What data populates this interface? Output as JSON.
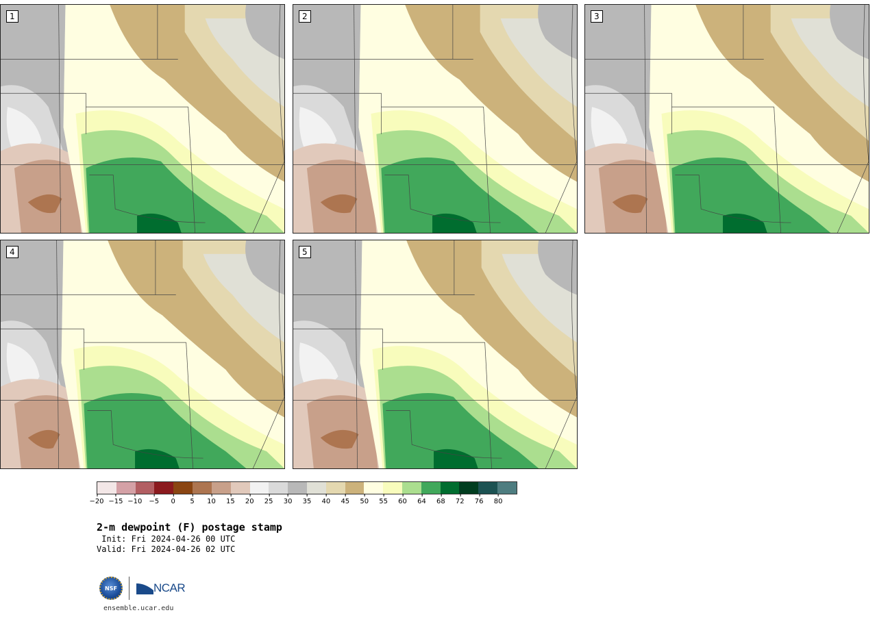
{
  "panels": [
    {
      "label": "1"
    },
    {
      "label": "2"
    },
    {
      "label": "3"
    },
    {
      "label": "4"
    },
    {
      "label": "5"
    }
  ],
  "colorbar": {
    "colors": [
      "#f3e7e7",
      "#d4a1a6",
      "#b25e62",
      "#8b1a1e",
      "#8a4512",
      "#ad7550",
      "#c8a08a",
      "#e1c9bb",
      "#f2f2f2",
      "#dadada",
      "#b8b8b8",
      "#e0e0d6",
      "#e4d8b0",
      "#ccb27b",
      "#fffee1",
      "#f8fcbc",
      "#abde8f",
      "#41a85b",
      "#006d2f",
      "#003d1f",
      "#1c5252",
      "#4e7d80"
    ],
    "ticks": [
      "−20",
      "−15",
      "−10",
      "−5",
      "0",
      "5",
      "10",
      "15",
      "20",
      "25",
      "30",
      "35",
      "40",
      "45",
      "50",
      "55",
      "60",
      "64",
      "68",
      "72",
      "76",
      "80"
    ]
  },
  "title": "2-m dewpoint (F) postage stamp",
  "init": " Init: Fri 2024-04-26 00 UTC",
  "valid": "Valid: Fri 2024-04-26 02 UTC",
  "logos": {
    "nsf": "NSF",
    "ncar": "NCAR"
  },
  "url": "ensemble.ucar.edu"
}
